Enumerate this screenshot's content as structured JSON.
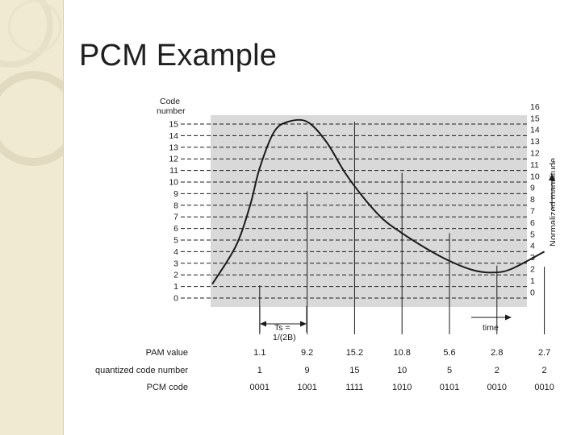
{
  "slide": {
    "title": "PCM Example"
  },
  "diagram": {
    "left_axis_title": [
      "Code",
      "number"
    ],
    "right_axis_title": "Normalized magnitude",
    "left_codes": [
      "15",
      "14",
      "13",
      "12",
      "11",
      "10",
      "9",
      "8",
      "7",
      "6",
      "5",
      "4",
      "3",
      "2",
      "1",
      "0"
    ],
    "right_scale": [
      "16",
      "15",
      "14",
      "13",
      "12",
      "11",
      "10",
      "9",
      "8",
      "7",
      "6",
      "5",
      "4",
      "3",
      "2",
      "1",
      "0"
    ],
    "ts_label": "Ts =",
    "ts_sub": "s",
    "ts_formula": "1/(2B)",
    "time_label": "time"
  },
  "chart_data": {
    "type": "line",
    "title": "",
    "xlabel": "time",
    "ylabel": "Code number",
    "y2label": "Normalized magnitude",
    "ylim": [
      0,
      16
    ],
    "curve_points": [
      {
        "x": 0.0,
        "y": 1.2
      },
      {
        "x": 0.5,
        "y": 4.5
      },
      {
        "x": 0.8,
        "y": 8.0
      },
      {
        "x": 1.0,
        "y": 11.2
      },
      {
        "x": 1.3,
        "y": 14.3
      },
      {
        "x": 1.6,
        "y": 15.2
      },
      {
        "x": 2.0,
        "y": 15.2
      },
      {
        "x": 2.4,
        "y": 13.5
      },
      {
        "x": 2.8,
        "y": 10.8
      },
      {
        "x": 3.2,
        "y": 8.6
      },
      {
        "x": 3.6,
        "y": 6.8
      },
      {
        "x": 4.0,
        "y": 5.6
      },
      {
        "x": 4.5,
        "y": 4.3
      },
      {
        "x": 5.0,
        "y": 3.2
      },
      {
        "x": 5.5,
        "y": 2.4
      },
      {
        "x": 5.9,
        "y": 2.2
      },
      {
        "x": 6.3,
        "y": 2.5
      },
      {
        "x": 7.0,
        "y": 4.0
      }
    ],
    "samples": [
      {
        "x": 1,
        "pam_value": "1.1",
        "quantized_code": "1",
        "pcm_code": "0001"
      },
      {
        "x": 2,
        "pam_value": "9.2",
        "quantized_code": "9",
        "pcm_code": "1001"
      },
      {
        "x": 3,
        "pam_value": "15.2",
        "quantized_code": "15",
        "pcm_code": "1111"
      },
      {
        "x": 4,
        "pam_value": "10.8",
        "quantized_code": "10",
        "pcm_code": "1010"
      },
      {
        "x": 5,
        "pam_value": "5.6",
        "quantized_code": "5",
        "pcm_code": "0101"
      },
      {
        "x": 6,
        "pam_value": "2.8",
        "quantized_code": "2",
        "pcm_code": "0010"
      },
      {
        "x": 7,
        "pam_value": "2.7",
        "quantized_code": "2",
        "pcm_code": "0010"
      }
    ],
    "row_labels": {
      "pam_value": "PAM value",
      "quantized_code": "quantized code number",
      "pcm_code": "PCM code"
    }
  },
  "colors": {
    "plot_bg": "#d9d9d9",
    "curve": "#1a1a1a",
    "side_panel": "#f1ead3"
  }
}
